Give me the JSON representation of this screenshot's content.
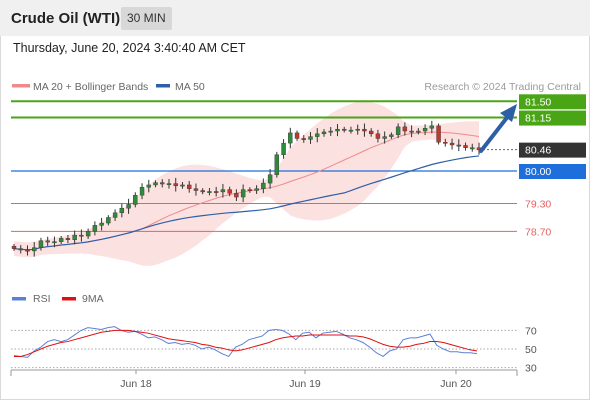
{
  "header": {
    "instrument": "Crude Oil (WTI)",
    "timeframe": "30 MIN",
    "datetime": "Thursday, June 20, 2024 3:40:40 AM CET"
  },
  "legend": {
    "ma20_label": "MA 20 + Bollinger Bands",
    "ma50_label": "MA 50",
    "credit": "Research © 2024 Trading Central",
    "ma20_color": "#f08a8a",
    "ma50_color": "#2f5fa7"
  },
  "levels": [
    {
      "value": 81.5,
      "label": "81.50",
      "style": "resistance",
      "color": "#4aa516"
    },
    {
      "value": 81.15,
      "label": "81.15",
      "style": "resistance",
      "color": "#4aa516"
    },
    {
      "value": 80.46,
      "label": "80.46",
      "style": "last",
      "color": "#333333"
    },
    {
      "value": 80.0,
      "label": "80.00",
      "style": "pivot",
      "color": "#1e6fdc"
    },
    {
      "value": 79.3,
      "label": "79.30",
      "style": "support",
      "color": "#e86060"
    },
    {
      "value": 78.7,
      "label": "78.70",
      "style": "support",
      "color": "#e86060"
    }
  ],
  "rsi_panel": {
    "rsi_label": "RSI",
    "ma_label": "9MA",
    "rsi_color": "#5a80d8",
    "ma_color": "#e01010",
    "ticks": [
      "70",
      "50",
      "30"
    ]
  },
  "x_axis": {
    "ticks": [
      "Jun 18",
      "Jun 19",
      "Jun 20"
    ]
  },
  "chart_data": {
    "type": "candlestick",
    "title": "Crude Oil (WTI)",
    "timeframe": "30 MIN",
    "price_range": [
      78.2,
      81.8
    ],
    "close": [
      78.33,
      78.3,
      78.28,
      78.35,
      78.5,
      78.47,
      78.48,
      78.55,
      78.52,
      78.62,
      78.6,
      78.7,
      78.83,
      78.88,
      79.0,
      79.1,
      79.2,
      79.28,
      79.48,
      79.65,
      79.7,
      79.75,
      79.72,
      79.73,
      79.68,
      79.7,
      79.62,
      79.58,
      79.55,
      79.56,
      79.55,
      79.6,
      79.52,
      79.44,
      79.6,
      79.58,
      79.62,
      79.74,
      79.92,
      80.35,
      80.6,
      80.82,
      80.7,
      80.68,
      80.74,
      80.8,
      80.84,
      80.86,
      80.9,
      80.88,
      80.88,
      80.9,
      80.86,
      80.8,
      80.7,
      80.74,
      80.78,
      80.95,
      80.86,
      80.85,
      80.86,
      80.92,
      80.97,
      80.62,
      80.6,
      80.56,
      80.55,
      80.5,
      80.5,
      80.46
    ],
    "rsi": [
      43,
      42,
      41,
      48,
      52,
      58,
      60,
      58,
      60,
      65,
      70,
      73,
      72,
      71,
      73,
      74,
      70,
      68,
      69,
      66,
      62,
      63,
      60,
      56,
      57,
      55,
      56,
      54,
      50,
      52,
      49,
      45,
      42,
      52,
      55,
      60,
      62,
      64,
      70,
      71,
      70,
      66,
      60,
      67,
      68,
      62,
      67,
      68,
      69,
      66,
      62,
      60,
      57,
      52,
      46,
      42,
      48,
      50,
      60,
      62,
      62,
      64,
      66,
      54,
      50,
      47,
      47,
      46,
      46,
      45
    ],
    "rsi_ma9": [
      42,
      42,
      44,
      47,
      50,
      53,
      55,
      57,
      58,
      60,
      62,
      64,
      66,
      68,
      69,
      70,
      70,
      70,
      69,
      68,
      67,
      65,
      63,
      61,
      60,
      59,
      58,
      57,
      55,
      54,
      52,
      51,
      49,
      48,
      49,
      51,
      53,
      55,
      57,
      60,
      62,
      63,
      64,
      64,
      65,
      65,
      65,
      65,
      65,
      65,
      64,
      64,
      63,
      61,
      58,
      55,
      53,
      52,
      52,
      53,
      55,
      56,
      58,
      58,
      57,
      55,
      53,
      51,
      49,
      48
    ],
    "rsi_ylim": [
      20,
      80
    ],
    "x_ticks": [
      "Jun 18",
      "Jun 19",
      "Jun 20"
    ]
  }
}
